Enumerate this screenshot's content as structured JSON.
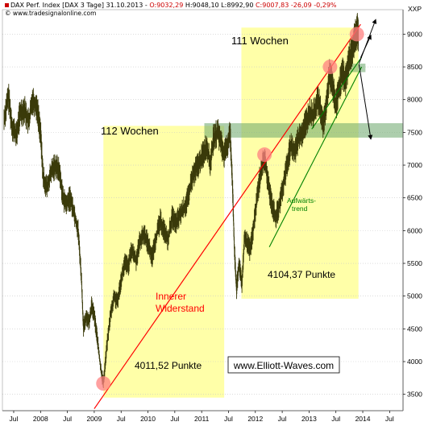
{
  "header": {
    "title": "DAX Perf. Index [DAX 3 Tage] 31.10.2013 -",
    "open": "O:9032,29",
    "high": "H:9048,10",
    "low": "L:8992,90",
    "close": "C:9007,83",
    "change": "-26,09 -0,29%",
    "source": "www.tradesignalonline.com"
  },
  "colors": {
    "price": "#3a3a0a",
    "zone": "#ffff99",
    "support_zone": "#6aa56a",
    "resistance": "#ff0000",
    "trend": "#008000",
    "circle": "#ff8080"
  },
  "chart_data": {
    "type": "line",
    "title": "DAX Perf. Index [DAX 3 Tage]",
    "ylabel": "XXP",
    "ylim": [
      3250,
      9300
    ],
    "y_ticks": [
      3500,
      4000,
      4500,
      5000,
      5500,
      6000,
      6500,
      7000,
      7500,
      8000,
      8500,
      9000
    ],
    "x_labels": [
      {
        "label": "Jul",
        "t": 2007.5
      },
      {
        "label": "2008",
        "t": 2008.0
      },
      {
        "label": "Jul",
        "t": 2008.5
      },
      {
        "label": "2009",
        "t": 2009.0
      },
      {
        "label": "Jul",
        "t": 2009.5
      },
      {
        "label": "2010",
        "t": 2010.0
      },
      {
        "label": "Jul",
        "t": 2010.5
      },
      {
        "label": "2011",
        "t": 2011.0
      },
      {
        "label": "Jul",
        "t": 2011.5
      },
      {
        "label": "2012",
        "t": 2012.0
      },
      {
        "label": "Jul",
        "t": 2012.5
      },
      {
        "label": "2013",
        "t": 2013.0
      },
      {
        "label": "Jul",
        "t": 2013.5
      },
      {
        "label": "2014",
        "t": 2014.0
      },
      {
        "label": "Jul",
        "t": 2014.5
      }
    ],
    "xlim": [
      2007.29,
      2014.75
    ],
    "series": [
      {
        "points": [
          [
            2007.32,
            7700
          ],
          [
            2007.4,
            8050
          ],
          [
            2007.47,
            7600
          ],
          [
            2007.55,
            7450
          ],
          [
            2007.62,
            7800
          ],
          [
            2007.7,
            7850
          ],
          [
            2007.78,
            7650
          ],
          [
            2007.85,
            8000
          ],
          [
            2007.93,
            7900
          ],
          [
            2008.0,
            7500
          ],
          [
            2008.05,
            6800
          ],
          [
            2008.12,
            6650
          ],
          [
            2008.2,
            6900
          ],
          [
            2008.28,
            7000
          ],
          [
            2008.35,
            6900
          ],
          [
            2008.42,
            6500
          ],
          [
            2008.48,
            6400
          ],
          [
            2008.55,
            6500
          ],
          [
            2008.62,
            6300
          ],
          [
            2008.7,
            6000
          ],
          [
            2008.76,
            5300
          ],
          [
            2008.8,
            4500
          ],
          [
            2008.85,
            4700
          ],
          [
            2008.9,
            4600
          ],
          [
            2008.95,
            4850
          ],
          [
            2009.0,
            4700
          ],
          [
            2009.05,
            4400
          ],
          [
            2009.12,
            3900
          ],
          [
            2009.17,
            3666
          ],
          [
            2009.23,
            4200
          ],
          [
            2009.3,
            4700
          ],
          [
            2009.37,
            5000
          ],
          [
            2009.43,
            4900
          ],
          [
            2009.5,
            5250
          ],
          [
            2009.57,
            5500
          ],
          [
            2009.63,
            5450
          ],
          [
            2009.7,
            5700
          ],
          [
            2009.78,
            5550
          ],
          [
            2009.85,
            5850
          ],
          [
            2009.93,
            5950
          ],
          [
            2010.0,
            5800
          ],
          [
            2010.08,
            5600
          ],
          [
            2010.15,
            5900
          ],
          [
            2010.23,
            6150
          ],
          [
            2010.3,
            6000
          ],
          [
            2010.37,
            5850
          ],
          [
            2010.45,
            6200
          ],
          [
            2010.52,
            6100
          ],
          [
            2010.6,
            6250
          ],
          [
            2010.68,
            6350
          ],
          [
            2010.75,
            6500
          ],
          [
            2010.82,
            6800
          ],
          [
            2010.9,
            6950
          ],
          [
            2010.97,
            7050
          ],
          [
            2011.04,
            7200
          ],
          [
            2011.1,
            7300
          ],
          [
            2011.16,
            7000
          ],
          [
            2011.22,
            7400
          ],
          [
            2011.3,
            7500
          ],
          [
            2011.36,
            7350
          ],
          [
            2011.42,
            7150
          ],
          [
            2011.48,
            7300
          ],
          [
            2011.53,
            7500
          ],
          [
            2011.57,
            6800
          ],
          [
            2011.61,
            5700
          ],
          [
            2011.65,
            5100
          ],
          [
            2011.7,
            5500
          ],
          [
            2011.75,
            5200
          ],
          [
            2011.8,
            5900
          ],
          [
            2011.85,
            5800
          ],
          [
            2011.9,
            5700
          ],
          [
            2011.96,
            6000
          ],
          [
            2012.03,
            6500
          ],
          [
            2012.1,
            6900
          ],
          [
            2012.17,
            7100
          ],
          [
            2012.24,
            6700
          ],
          [
            2012.31,
            6400
          ],
          [
            2012.38,
            6200
          ],
          [
            2012.45,
            6400
          ],
          [
            2012.52,
            6700
          ],
          [
            2012.59,
            7000
          ],
          [
            2012.66,
            7300
          ],
          [
            2012.73,
            7200
          ],
          [
            2012.8,
            7400
          ],
          [
            2012.87,
            7500
          ],
          [
            2012.94,
            7650
          ],
          [
            2013.01,
            7800
          ],
          [
            2013.08,
            7750
          ],
          [
            2013.15,
            8000
          ],
          [
            2013.2,
            7900
          ],
          [
            2013.26,
            7600
          ],
          [
            2013.32,
            7900
          ],
          [
            2013.38,
            8400
          ],
          [
            2013.44,
            8200
          ],
          [
            2013.5,
            7900
          ],
          [
            2013.56,
            8200
          ],
          [
            2013.62,
            8400
          ],
          [
            2013.68,
            8300
          ],
          [
            2013.74,
            8600
          ],
          [
            2013.8,
            8750
          ],
          [
            2013.86,
            9000
          ],
          [
            2013.9,
            9048
          ],
          [
            2013.92,
            9008
          ]
        ]
      }
    ],
    "range_labels": [
      {
        "text": "112 Wochen"
      },
      {
        "text": "111 Wochen"
      }
    ],
    "point_labels": [
      {
        "text": "4011,52 Punkte"
      },
      {
        "text": "4104,37 Punkte"
      }
    ],
    "resistance_label": [
      "Innerer",
      "Widerstand"
    ],
    "trend_label": [
      "Aufwärts-",
      "trend"
    ],
    "watermark": "www.Elliott-Waves.com"
  }
}
